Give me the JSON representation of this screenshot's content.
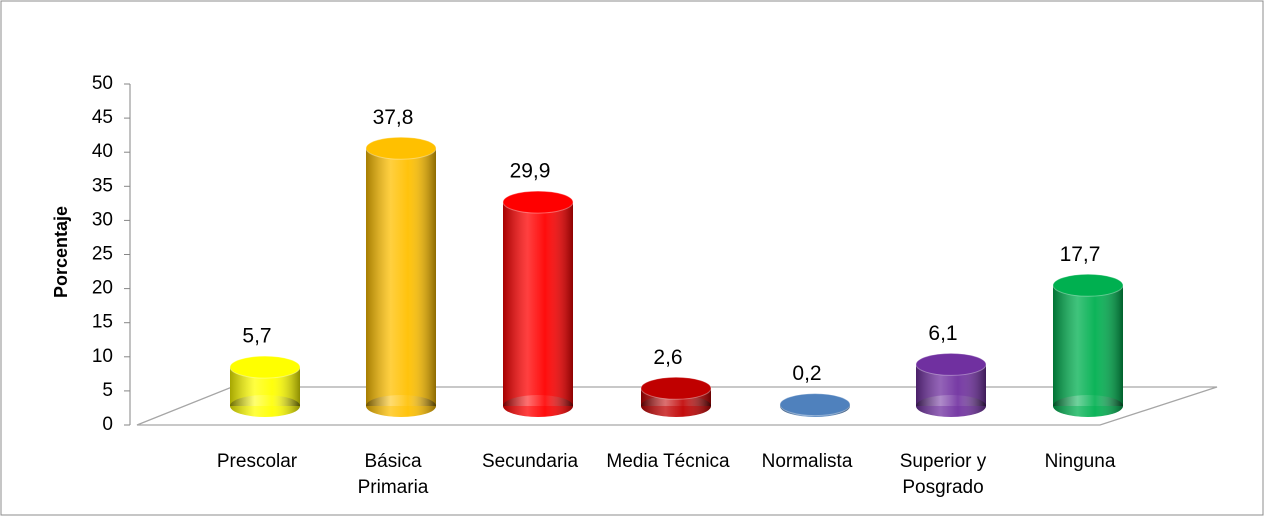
{
  "chart_data": {
    "type": "cylinder-bar",
    "y_label": "Porcentaje",
    "categories": [
      "Prescolar",
      "Básica Primaria",
      "Secundaria",
      "Media Técnica",
      "Normalista",
      "Superior y Posgrado",
      "Ninguna"
    ],
    "values": [
      5.7,
      37.8,
      29.9,
      2.6,
      0.2,
      6.1,
      17.7
    ],
    "value_labels": [
      "5,7",
      "37,8",
      "29,9",
      "2,6",
      "0,2",
      "6,1",
      "17,7"
    ],
    "colors": [
      "#ffff00",
      "#ffc000",
      "#ff0000",
      "#c00000",
      "#4f81bd",
      "#7030a0",
      "#00b050"
    ],
    "ylim": [
      0,
      50
    ],
    "yticks": [
      0,
      5,
      10,
      15,
      20,
      25,
      30,
      35,
      40,
      45,
      50
    ]
  }
}
